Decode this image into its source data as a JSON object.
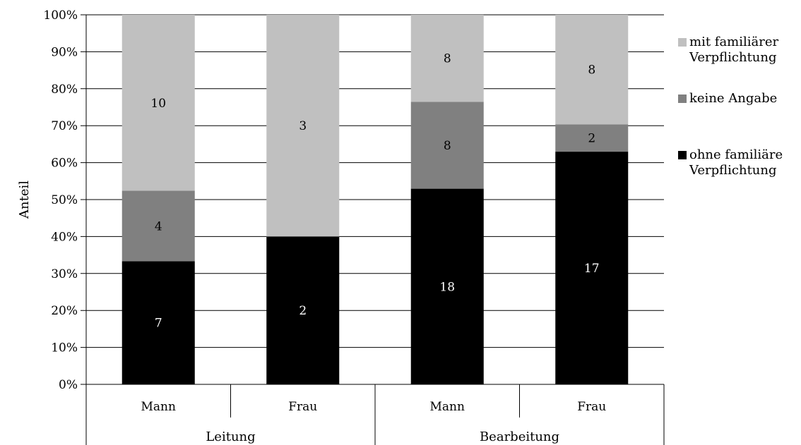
{
  "chart_data": {
    "type": "bar",
    "stacked": "percent",
    "ylabel": "Anteil",
    "ylim": [
      0,
      100
    ],
    "yticks": [
      "0%",
      "10%",
      "20%",
      "30%",
      "40%",
      "50%",
      "60%",
      "70%",
      "80%",
      "90%",
      "100%"
    ],
    "grid": true,
    "legend_position": "right",
    "categories": [
      "Mann",
      "Frau",
      "Mann",
      "Frau"
    ],
    "groups": [
      {
        "label": "Leitung",
        "span": [
          0,
          1
        ]
      },
      {
        "label": "Bearbeitung",
        "span": [
          2,
          3
        ]
      }
    ],
    "series": [
      {
        "name": "ohne familiäre Verpflichtung",
        "legend_lines": [
          "ohne familiäre",
          "Verpflichtung"
        ],
        "color": "#000000",
        "label_color": "#ffffff",
        "values": [
          7,
          2,
          18,
          17
        ]
      },
      {
        "name": "keine Angabe",
        "legend_lines": [
          "keine Angabe"
        ],
        "color": "#808080",
        "label_color": "#000000",
        "values": [
          4,
          0,
          8,
          2
        ]
      },
      {
        "name": "mit familiärer Verpflichtung",
        "legend_lines": [
          "mit familiärer",
          "Verpflichtung"
        ],
        "color": "#c0c0c0",
        "label_color": "#000000",
        "values": [
          10,
          3,
          8,
          8
        ]
      }
    ]
  }
}
